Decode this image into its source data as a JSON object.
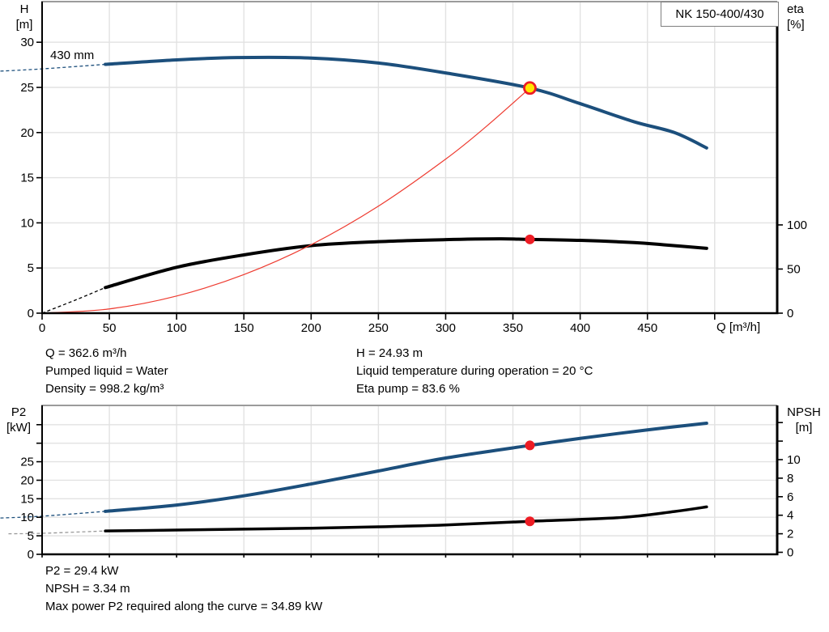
{
  "colors": {
    "curve_blue": "#1c4f7c",
    "curve_black": "#000000",
    "duty_red": "#ee3b30",
    "marker_red": "#ed1c24",
    "marker_yellow": "#ffe600",
    "grid": "#e2e2e2",
    "border_gray": "#9b9b9b",
    "axis_black": "#000000",
    "dash_gray": "#999999"
  },
  "top_info": {
    "left": [
      "Q = 362.6 m³/h",
      "Pumped liquid = Water",
      "Density = 998.2 kg/m³"
    ],
    "right": [
      "H = 24.93 m",
      "Liquid temperature during operation = 20 °C",
      "Eta pump = 83.6 %"
    ]
  },
  "bottom_info": [
    "P2 = 29.4 kW",
    "NPSH = 3.34 m",
    "Max power P2 required along the curve = 34.89 kW"
  ],
  "chart_data": [
    {
      "id": "qh",
      "type": "line",
      "title": "NK 150-400/430",
      "curve_label": "430 mm",
      "x_axis": {
        "label": "Q [m³/h]",
        "ticks": [
          0,
          50,
          100,
          150,
          200,
          250,
          300,
          350,
          400,
          450
        ],
        "unlabeled_ticks": [
          500
        ],
        "min": 0,
        "max": 546
      },
      "left_axis": {
        "label": [
          "H",
          "[m]"
        ],
        "ticks": [
          0,
          5,
          10,
          15,
          20,
          25,
          30
        ],
        "unlabeled_ticks": []
      },
      "right_axis": {
        "label": [
          "eta",
          "[%]"
        ],
        "ticks": [
          0,
          50,
          100
        ],
        "unlabeled_ticks": []
      },
      "series": [
        {
          "name": "head-curve-430mm",
          "axis": "left",
          "color": "#1c4f7c",
          "width": 4,
          "dash_points": [
            [
              -31,
              26.8
            ],
            [
              0,
              27.05
            ],
            [
              47,
              27.55
            ]
          ],
          "points": [
            [
              47,
              27.55
            ],
            [
              100,
              28.05
            ],
            [
              145,
              28.3
            ],
            [
              200,
              28.25
            ],
            [
              250,
              27.7
            ],
            [
              300,
              26.6
            ],
            [
              362.6,
              24.93
            ],
            [
              400,
              23.2
            ],
            [
              440,
              21.2
            ],
            [
              470,
              20.0
            ],
            [
              494,
              18.3
            ]
          ]
        },
        {
          "name": "efficiency-curve",
          "axis": "right",
          "color": "#000000",
          "width": 4,
          "dash_points": [
            [
              0,
              0
            ],
            [
              25,
              15
            ],
            [
              47,
              29
            ]
          ],
          "points": [
            [
              47,
              29
            ],
            [
              100,
              52
            ],
            [
              150,
              66
            ],
            [
              200,
              76.5
            ],
            [
              250,
              81
            ],
            [
              300,
              83.3
            ],
            [
              340,
              84.2
            ],
            [
              362.6,
              83.6
            ],
            [
              400,
              82.5
            ],
            [
              440,
              80
            ],
            [
              462,
              77.5
            ],
            [
              494,
              73.5
            ]
          ]
        },
        {
          "name": "duty-parabola",
          "axis": "left",
          "color": "#ee3b30",
          "width": 1.2,
          "points": [
            [
              0,
              0
            ],
            [
              50,
              0.47
            ],
            [
              100,
              1.9
            ],
            [
              150,
              4.27
            ],
            [
              200,
              7.58
            ],
            [
              250,
              11.85
            ],
            [
              300,
              17.06
            ],
            [
              330,
              20.65
            ],
            [
              362.6,
              24.93
            ]
          ]
        }
      ],
      "markers": [
        {
          "name": "duty-point",
          "axis": "left",
          "q": 362.6,
          "value": 24.93,
          "style": "duty"
        },
        {
          "name": "efficiency-point",
          "axis": "right",
          "q": 362.6,
          "value": 83.6,
          "style": "dot"
        }
      ]
    },
    {
      "id": "p2npsh",
      "type": "line",
      "title": "",
      "x_axis": {
        "label": "",
        "ticks": [],
        "unlabeled_ticks": [
          0,
          50,
          100,
          150,
          200,
          250,
          300,
          350,
          400,
          450,
          500
        ],
        "min": 0,
        "max": 546
      },
      "left_axis": {
        "label": [
          "P2",
          "[kW]"
        ],
        "ticks": [
          0,
          5,
          10,
          15,
          20,
          25
        ],
        "unlabeled_ticks": [
          30,
          35
        ]
      },
      "right_axis": {
        "label": [
          "NPSH",
          "[m]"
        ],
        "ticks": [
          0,
          2,
          4,
          6,
          8,
          10
        ],
        "unlabeled_ticks": [
          12,
          14
        ]
      },
      "series": [
        {
          "name": "p2-curve",
          "axis": "left",
          "color": "#1c4f7c",
          "width": 4,
          "dash_points": [
            [
              -31,
              9.8
            ],
            [
              0,
              10.3
            ],
            [
              47,
              11.6
            ]
          ],
          "points": [
            [
              47,
              11.6
            ],
            [
              100,
              13.3
            ],
            [
              150,
              15.8
            ],
            [
              200,
              19.0
            ],
            [
              250,
              22.5
            ],
            [
              300,
              26.0
            ],
            [
              362.6,
              29.4
            ],
            [
              400,
              31.3
            ],
            [
              450,
              33.6
            ],
            [
              494,
              35.4
            ]
          ]
        },
        {
          "name": "npsh-curve",
          "axis": "right",
          "color": "#000000",
          "width": 3.5,
          "dash_color": "#999999",
          "dash_points": [
            [
              -25,
              2.0
            ],
            [
              0,
              2.05
            ],
            [
              47,
              2.3
            ]
          ],
          "points": [
            [
              47,
              2.3
            ],
            [
              100,
              2.4
            ],
            [
              150,
              2.5
            ],
            [
              200,
              2.6
            ],
            [
              250,
              2.75
            ],
            [
              300,
              2.95
            ],
            [
              362.6,
              3.34
            ],
            [
              430,
              3.75
            ],
            [
              470,
              4.4
            ],
            [
              494,
              4.9
            ]
          ]
        }
      ],
      "markers": [
        {
          "name": "p2-point",
          "axis": "left",
          "q": 362.6,
          "value": 29.4,
          "style": "dot"
        },
        {
          "name": "npsh-point",
          "axis": "right",
          "q": 362.6,
          "value": 3.34,
          "style": "dot"
        }
      ]
    }
  ]
}
